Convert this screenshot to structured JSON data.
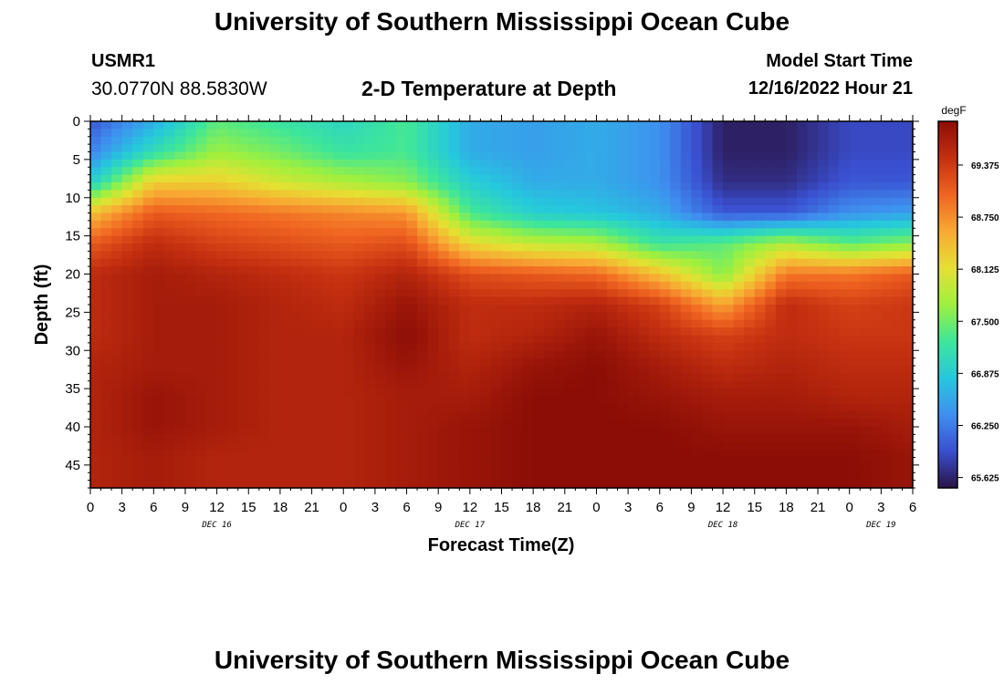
{
  "header": {
    "title": "University of Southern Mississippi Ocean Cube",
    "station_id": "USMR1",
    "station_coords": "30.0770N  88.5830W",
    "plot_title": "2-D Temperature at Depth",
    "model_start_label": "Model Start Time",
    "model_start_value": "12/16/2022 Hour 21"
  },
  "footer": {
    "title": "University of Southern Mississippi Ocean Cube"
  },
  "chart_data": {
    "type": "heatmap",
    "title": "2-D Temperature at Depth",
    "xlabel": "Forecast Time(Z)",
    "ylabel": "Depth (ft)",
    "x_tick_labels": [
      "0",
      "3",
      "6",
      "9",
      "12",
      "15",
      "18",
      "21",
      "0",
      "3",
      "6",
      "9",
      "12",
      "15",
      "18",
      "21",
      "0",
      "3",
      "6",
      "9",
      "12",
      "15",
      "18",
      "21",
      "0",
      "3",
      "6"
    ],
    "x_hours_since_dec16_00z": [
      0,
      3,
      6,
      9,
      12,
      15,
      18,
      21,
      24,
      27,
      30,
      33,
      36,
      39,
      42,
      45,
      48,
      51,
      54,
      57,
      60,
      63,
      66,
      69,
      72,
      75,
      78
    ],
    "x_date_labels": [
      {
        "hour": 12,
        "text": "DEC 16"
      },
      {
        "hour": 36,
        "text": "DEC 17"
      },
      {
        "hour": 60,
        "text": "DEC 18"
      },
      {
        "hour": 75,
        "text": "DEC 19"
      }
    ],
    "xlim": [
      0,
      78
    ],
    "y_tick_labels": [
      "0",
      "5",
      "10",
      "15",
      "20",
      "25",
      "30",
      "35",
      "40",
      "45"
    ],
    "y_ticks": [
      0,
      5,
      10,
      15,
      20,
      25,
      30,
      35,
      40,
      45
    ],
    "ylim": [
      0,
      48
    ],
    "y_inverted": true,
    "colorbar": {
      "unit": "degF",
      "ticks": [
        "69.375",
        "68.750",
        "68.125",
        "67.500",
        "66.875",
        "66.250",
        "65.625"
      ],
      "tick_values": [
        69.375,
        68.75,
        68.125,
        67.5,
        66.875,
        66.25,
        65.625
      ],
      "range": [
        65.5,
        69.9
      ],
      "colors": [
        "#2a1245",
        "#3a4fd0",
        "#3f8ff0",
        "#25c8dd",
        "#3ee69a",
        "#9ef03e",
        "#e6e032",
        "#f8a933",
        "#f06421",
        "#c42f10",
        "#8c0d06"
      ]
    },
    "depths_ft": [
      0,
      4,
      8,
      12,
      16,
      20,
      24,
      28,
      32,
      36,
      40,
      44,
      48
    ],
    "times_h": [
      0,
      6,
      12,
      18,
      24,
      30,
      36,
      42,
      48,
      54,
      60,
      66,
      72,
      78
    ],
    "temperature_degF": [
      [
        66.0,
        66.6,
        67.4,
        67.2,
        67.0,
        67.3,
        66.6,
        66.5,
        66.6,
        66.4,
        65.6,
        65.6,
        65.9,
        65.9
      ],
      [
        66.3,
        67.1,
        67.7,
        67.5,
        67.2,
        67.3,
        66.6,
        66.5,
        66.6,
        66.4,
        65.6,
        65.6,
        65.9,
        65.9
      ],
      [
        66.9,
        68.3,
        68.3,
        68.0,
        67.8,
        67.6,
        66.9,
        66.6,
        66.6,
        66.4,
        65.7,
        65.7,
        66.0,
        66.0
      ],
      [
        68.4,
        69.1,
        69.0,
        68.9,
        68.8,
        68.7,
        67.3,
        66.9,
        66.8,
        66.6,
        66.0,
        66.0,
        66.4,
        66.5
      ],
      [
        69.1,
        69.5,
        69.3,
        69.2,
        69.1,
        69.2,
        68.2,
        67.9,
        67.8,
        67.2,
        67.4,
        67.8,
        67.4,
        67.6
      ],
      [
        69.5,
        69.7,
        69.6,
        69.5,
        69.4,
        69.6,
        69.2,
        69.1,
        69.0,
        68.4,
        67.6,
        68.9,
        68.9,
        69.1
      ],
      [
        69.5,
        69.7,
        69.7,
        69.6,
        69.5,
        69.8,
        69.5,
        69.5,
        69.6,
        69.3,
        68.6,
        69.5,
        69.3,
        69.4
      ],
      [
        69.5,
        69.7,
        69.7,
        69.6,
        69.6,
        69.9,
        69.5,
        69.6,
        69.8,
        69.5,
        69.3,
        69.5,
        69.4,
        69.4
      ],
      [
        69.6,
        69.7,
        69.7,
        69.6,
        69.6,
        69.8,
        69.6,
        69.8,
        69.9,
        69.7,
        69.5,
        69.6,
        69.5,
        69.5
      ],
      [
        69.6,
        69.8,
        69.7,
        69.6,
        69.6,
        69.7,
        69.7,
        69.9,
        69.9,
        69.8,
        69.7,
        69.7,
        69.6,
        69.6
      ],
      [
        69.6,
        69.8,
        69.7,
        69.6,
        69.6,
        69.7,
        69.8,
        69.9,
        69.9,
        69.9,
        69.8,
        69.8,
        69.8,
        69.7
      ],
      [
        69.6,
        69.7,
        69.6,
        69.6,
        69.6,
        69.7,
        69.8,
        69.9,
        69.9,
        69.9,
        69.9,
        69.9,
        69.9,
        69.8
      ],
      [
        69.6,
        69.7,
        69.6,
        69.6,
        69.6,
        69.7,
        69.8,
        69.9,
        69.9,
        69.9,
        69.9,
        69.9,
        69.9,
        69.8
      ]
    ]
  }
}
